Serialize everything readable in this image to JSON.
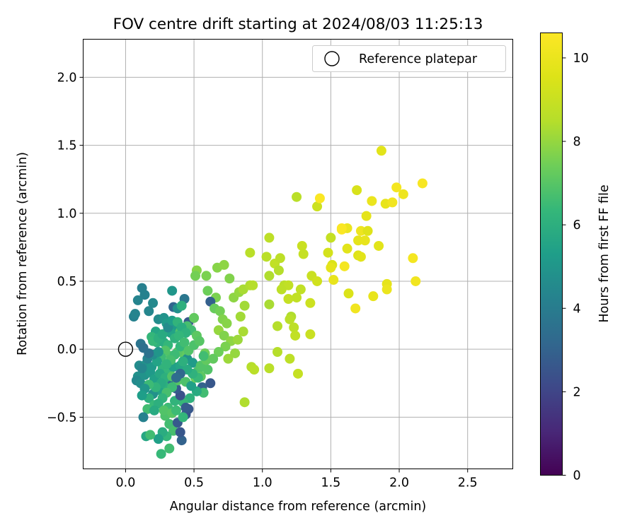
{
  "chart_data": {
    "type": "scatter",
    "title": "FOV centre drift starting at 2024/08/03 11:25:13",
    "xlabel": "Angular distance from reference (arcmin)",
    "ylabel": "Rotation from reference (arcmin)",
    "xlim": [
      -0.31,
      2.83
    ],
    "ylim": [
      -0.88,
      2.28
    ],
    "xticks": [
      "0.0",
      "0.5",
      "1.0",
      "1.5",
      "2.0",
      "2.5"
    ],
    "xtick_values": [
      0,
      0.5,
      1.0,
      1.5,
      2.0,
      2.5
    ],
    "yticks": [
      "−0.5",
      "0.0",
      "0.5",
      "1.0",
      "1.5",
      "2.0"
    ],
    "ytick_values": [
      -0.5,
      0,
      0.5,
      1.0,
      1.5,
      2.0
    ],
    "grid": true,
    "legend": {
      "position": "top-right",
      "label": "Reference platepar"
    },
    "colorbar": {
      "label": "Hours from first FF file",
      "colormap": "viridis",
      "range": [
        0,
        10.6
      ],
      "ticks": [
        "0",
        "2",
        "4",
        "6",
        "8",
        "10"
      ],
      "tick_values": [
        0,
        2,
        4,
        6,
        8,
        10
      ]
    },
    "reference_point": {
      "x": 0.0,
      "y": 0.0
    },
    "points": [
      [
        0.06,
        0.24,
        4.2
      ],
      [
        0.07,
        0.26,
        4.3
      ],
      [
        0.12,
        0.45,
        4.1
      ],
      [
        0.09,
        0.36,
        4.3
      ],
      [
        0.14,
        0.4,
        4.2
      ],
      [
        0.17,
        0.28,
        4.4
      ],
      [
        0.2,
        0.34,
        4.5
      ],
      [
        0.34,
        0.43,
        5.0
      ],
      [
        0.43,
        0.37,
        3.8
      ],
      [
        0.24,
        0.22,
        4.6
      ],
      [
        0.28,
        0.23,
        4.9
      ],
      [
        0.3,
        0.19,
        5.2
      ],
      [
        0.36,
        0.17,
        5.2
      ],
      [
        0.33,
        0.12,
        5.5
      ],
      [
        0.35,
        0.31,
        3.1
      ],
      [
        0.38,
        0.3,
        4.8
      ],
      [
        0.41,
        0.32,
        6.0
      ],
      [
        0.46,
        0.2,
        2.7
      ],
      [
        0.22,
        0.13,
        5.6
      ],
      [
        0.23,
        0.05,
        6.1
      ],
      [
        0.19,
        0.09,
        6.3
      ],
      [
        0.28,
        0.05,
        5.9
      ],
      [
        0.31,
        0.03,
        6.3
      ],
      [
        0.36,
        0.08,
        6.1
      ],
      [
        0.4,
        0.13,
        6.8
      ],
      [
        0.45,
        0.17,
        6.7
      ],
      [
        0.5,
        0.23,
        7.2
      ],
      [
        0.48,
        0.14,
        6.6
      ],
      [
        0.52,
        0.1,
        7.1
      ],
      [
        0.42,
        -0.03,
        7.2
      ],
      [
        0.38,
        -0.02,
        7.0
      ],
      [
        0.33,
        -0.05,
        6.8
      ],
      [
        0.29,
        -0.01,
        6.9
      ],
      [
        0.26,
        -0.06,
        6.5
      ],
      [
        0.27,
        -0.14,
        6.2
      ],
      [
        0.31,
        -0.17,
        6.3
      ],
      [
        0.35,
        -0.13,
        5.4
      ],
      [
        0.4,
        -0.12,
        5.6
      ],
      [
        0.45,
        -0.07,
        4.8
      ],
      [
        0.49,
        -0.1,
        5.2
      ],
      [
        0.53,
        -0.16,
        6.8
      ],
      [
        0.55,
        -0.2,
        7.1
      ],
      [
        0.6,
        -0.15,
        6.9
      ],
      [
        0.62,
        -0.25,
        2.6
      ],
      [
        0.56,
        -0.28,
        3.0
      ],
      [
        0.57,
        -0.32,
        6.6
      ],
      [
        0.52,
        -0.31,
        5.8
      ],
      [
        0.47,
        -0.36,
        6.1
      ],
      [
        0.42,
        -0.39,
        6.4
      ],
      [
        0.36,
        -0.38,
        6.2
      ],
      [
        0.31,
        -0.43,
        6.5
      ],
      [
        0.29,
        -0.49,
        6.8
      ],
      [
        0.32,
        -0.55,
        6.6
      ],
      [
        0.35,
        -0.6,
        6.7
      ],
      [
        0.3,
        -0.64,
        6.3
      ],
      [
        0.27,
        -0.61,
        5.9
      ],
      [
        0.24,
        -0.66,
        5.4
      ],
      [
        0.26,
        -0.77,
        6.4
      ],
      [
        0.32,
        -0.73,
        6.6
      ],
      [
        0.41,
        -0.67,
        3.0
      ],
      [
        0.4,
        -0.61,
        2.6
      ],
      [
        0.38,
        -0.54,
        2.7
      ],
      [
        0.44,
        -0.48,
        2.5
      ],
      [
        0.46,
        -0.44,
        2.6
      ],
      [
        0.4,
        -0.34,
        2.4
      ],
      [
        0.37,
        -0.29,
        2.7
      ],
      [
        0.33,
        -0.25,
        3.5
      ],
      [
        0.28,
        -0.27,
        6.0
      ],
      [
        0.24,
        -0.3,
        5.5
      ],
      [
        0.2,
        -0.33,
        4.8
      ],
      [
        0.17,
        -0.36,
        6.0
      ],
      [
        0.21,
        -0.41,
        6.4
      ],
      [
        0.16,
        -0.44,
        6.6
      ],
      [
        0.13,
        -0.5,
        4.2
      ],
      [
        0.15,
        -0.64,
        5.7
      ],
      [
        0.18,
        -0.63,
        6.6
      ],
      [
        0.09,
        -0.2,
        4.8
      ],
      [
        0.08,
        -0.23,
        4.5
      ],
      [
        0.11,
        -0.25,
        4.7
      ],
      [
        0.14,
        -0.19,
        4.9
      ],
      [
        0.18,
        -0.17,
        5.1
      ],
      [
        0.21,
        -0.22,
        5.4
      ],
      [
        0.25,
        -0.18,
        5.7
      ],
      [
        0.29,
        -0.21,
        6.0
      ],
      [
        0.26,
        -0.25,
        5.8
      ],
      [
        0.22,
        -0.28,
        6.2
      ],
      [
        0.17,
        -0.26,
        6.5
      ],
      [
        0.14,
        -0.29,
        5.0
      ],
      [
        0.12,
        -0.34,
        5.3
      ],
      [
        0.1,
        -0.12,
        4.6
      ],
      [
        0.15,
        -0.11,
        4.9
      ],
      [
        0.19,
        -0.13,
        5.1
      ],
      [
        0.23,
        -0.09,
        5.5
      ],
      [
        0.12,
        -0.14,
        4.4
      ],
      [
        0.16,
        -0.07,
        4.3
      ],
      [
        0.2,
        -0.04,
        4.7
      ],
      [
        0.24,
        -0.02,
        5.0
      ],
      [
        0.11,
        0.04,
        3.7
      ],
      [
        0.13,
        0.01,
        3.5
      ],
      [
        0.17,
        -0.03,
        3.6
      ],
      [
        0.2,
        0.06,
        6.4
      ],
      [
        0.24,
        0.08,
        6.0
      ],
      [
        0.27,
        0.11,
        5.8
      ],
      [
        0.31,
        0.16,
        4.6
      ],
      [
        0.34,
        0.21,
        5.3
      ],
      [
        0.38,
        0.2,
        6.2
      ],
      [
        0.41,
        0.16,
        5.9
      ],
      [
        0.44,
        0.12,
        6.1
      ],
      [
        0.39,
        0.1,
        6.3
      ],
      [
        0.36,
        -0.04,
        6.5
      ],
      [
        0.33,
        -0.08,
        6.7
      ],
      [
        0.3,
        -0.11,
        6.2
      ],
      [
        0.34,
        -0.2,
        6.9
      ],
      [
        0.38,
        -0.23,
        7.0
      ],
      [
        0.44,
        -0.24,
        6.8
      ],
      [
        0.48,
        -0.27,
        5.4
      ],
      [
        0.51,
        -0.21,
        7.3
      ],
      [
        0.55,
        -0.12,
        6.9
      ],
      [
        0.59,
        -0.08,
        7.2
      ],
      [
        0.58,
        -0.03,
        7.4
      ],
      [
        0.52,
        0.58,
        7.8
      ],
      [
        0.51,
        0.54,
        7.5
      ],
      [
        0.59,
        0.54,
        7.6
      ],
      [
        0.67,
        0.6,
        7.8
      ],
      [
        0.72,
        0.62,
        7.9
      ],
      [
        0.76,
        0.52,
        7.7
      ],
      [
        0.6,
        0.43,
        7.4
      ],
      [
        0.66,
        0.38,
        7.6
      ],
      [
        0.62,
        0.35,
        2.9
      ],
      [
        0.65,
        0.3,
        7.3
      ],
      [
        0.69,
        0.28,
        7.5
      ],
      [
        0.71,
        0.22,
        7.7
      ],
      [
        0.74,
        0.19,
        7.8
      ],
      [
        0.68,
        0.14,
        8.0
      ],
      [
        0.72,
        0.1,
        7.7
      ],
      [
        0.77,
        0.06,
        7.9
      ],
      [
        0.73,
        0.02,
        7.6
      ],
      [
        0.68,
        -0.02,
        7.4
      ],
      [
        0.64,
        -0.07,
        7.2
      ],
      [
        0.75,
        -0.07,
        8.1
      ],
      [
        0.8,
        -0.03,
        8.0
      ],
      [
        0.82,
        0.07,
        8.1
      ],
      [
        0.86,
        0.13,
        8.3
      ],
      [
        0.84,
        0.24,
        8.2
      ],
      [
        0.87,
        0.32,
        8.2
      ],
      [
        0.79,
        0.38,
        7.9
      ],
      [
        0.83,
        0.42,
        8.0
      ],
      [
        0.86,
        0.44,
        8.3
      ],
      [
        0.91,
        0.47,
        8.4
      ],
      [
        0.93,
        0.47,
        8.5
      ],
      [
        0.91,
        0.71,
        8.6
      ],
      [
        0.87,
        -0.39,
        8.4
      ],
      [
        0.92,
        -0.13,
        8.5
      ],
      [
        0.94,
        -0.15,
        8.6
      ],
      [
        1.05,
        0.82,
        8.7
      ],
      [
        1.03,
        0.68,
        8.6
      ],
      [
        1.05,
        0.54,
        8.4
      ],
      [
        1.09,
        0.63,
        8.8
      ],
      [
        1.13,
        0.67,
        8.7
      ],
      [
        1.12,
        0.58,
        8.5
      ],
      [
        1.16,
        0.47,
        8.6
      ],
      [
        1.19,
        0.47,
        8.8
      ],
      [
        1.14,
        0.44,
        8.7
      ],
      [
        1.19,
        0.37,
        8.9
      ],
      [
        1.25,
        0.38,
        8.8
      ],
      [
        1.21,
        0.24,
        8.4
      ],
      [
        1.2,
        0.22,
        8.6
      ],
      [
        1.23,
        0.16,
        8.7
      ],
      [
        1.11,
        0.17,
        8.5
      ],
      [
        1.05,
        0.33,
        8.3
      ],
      [
        1.24,
        0.1,
        8.8
      ],
      [
        1.2,
        -0.07,
        8.7
      ],
      [
        1.11,
        -0.02,
        8.5
      ],
      [
        1.05,
        -0.14,
        8.6
      ],
      [
        1.26,
        -0.18,
        8.9
      ],
      [
        1.25,
        1.12,
        8.6
      ],
      [
        1.29,
        0.76,
        9.0
      ],
      [
        1.3,
        0.7,
        8.9
      ],
      [
        1.28,
        0.44,
        8.8
      ],
      [
        1.35,
        0.34,
        9.1
      ],
      [
        1.35,
        0.11,
        9.0
      ],
      [
        1.36,
        0.54,
        9.0
      ],
      [
        1.4,
        0.5,
        9.2
      ],
      [
        1.4,
        1.05,
        9.1
      ],
      [
        1.42,
        1.11,
        10.5
      ],
      [
        1.48,
        0.71,
        9.3
      ],
      [
        1.5,
        0.82,
        8.9
      ],
      [
        1.51,
        0.62,
        9.5
      ],
      [
        1.5,
        0.6,
        9.8
      ],
      [
        1.52,
        0.51,
        9.9
      ],
      [
        1.58,
        0.88,
        10.6
      ],
      [
        1.6,
        0.61,
        10.3
      ],
      [
        1.62,
        0.89,
        10.0
      ],
      [
        1.62,
        0.74,
        9.7
      ],
      [
        1.63,
        0.41,
        9.5
      ],
      [
        1.68,
        0.3,
        10.2
      ],
      [
        1.69,
        1.17,
        9.4
      ],
      [
        1.7,
        0.8,
        9.8
      ],
      [
        1.7,
        0.69,
        9.6
      ],
      [
        1.72,
        0.87,
        10.1
      ],
      [
        1.72,
        0.68,
        9.7
      ],
      [
        1.75,
        0.8,
        9.9
      ],
      [
        1.76,
        0.98,
        9.8
      ],
      [
        1.77,
        0.87,
        9.6
      ],
      [
        1.8,
        1.09,
        10.0
      ],
      [
        1.81,
        0.39,
        9.9
      ],
      [
        1.85,
        0.76,
        9.7
      ],
      [
        1.87,
        1.46,
        9.7
      ],
      [
        1.9,
        1.07,
        9.9
      ],
      [
        1.91,
        0.48,
        9.8
      ],
      [
        1.91,
        0.44,
        10.0
      ],
      [
        1.95,
        1.08,
        10.2
      ],
      [
        1.98,
        1.19,
        10.3
      ],
      [
        2.03,
        1.14,
        10.1
      ],
      [
        2.1,
        0.67,
        10.3
      ],
      [
        2.12,
        0.5,
        10.2
      ],
      [
        2.17,
        1.22,
        10.4
      ],
      [
        1.58,
        0.89,
        10.5
      ],
      [
        0.4,
        0.02,
        6.3
      ],
      [
        0.43,
        0.05,
        6.6
      ],
      [
        0.46,
        -0.01,
        6.9
      ],
      [
        0.5,
        0.03,
        6.8
      ],
      [
        0.54,
        0.06,
        7.0
      ],
      [
        0.57,
        -0.05,
        6.6
      ],
      [
        0.53,
        -0.21,
        6.4
      ],
      [
        0.49,
        -0.18,
        6.1
      ],
      [
        0.45,
        -0.15,
        5.8
      ],
      [
        0.42,
        -0.09,
        6.0
      ],
      [
        0.4,
        -0.18,
        3.2
      ],
      [
        0.37,
        -0.21,
        3.4
      ],
      [
        0.34,
        -0.28,
        6.5
      ],
      [
        0.3,
        -0.32,
        6.7
      ],
      [
        0.27,
        -0.36,
        6.2
      ],
      [
        0.24,
        -0.4,
        6.0
      ],
      [
        0.21,
        -0.45,
        5.8
      ],
      [
        0.28,
        -0.45,
        6.9
      ],
      [
        0.34,
        -0.47,
        7.0
      ],
      [
        0.37,
        -0.45,
        6.5
      ],
      [
        0.42,
        -0.5,
        6.3
      ],
      [
        0.44,
        -0.43,
        2.8
      ]
    ]
  }
}
